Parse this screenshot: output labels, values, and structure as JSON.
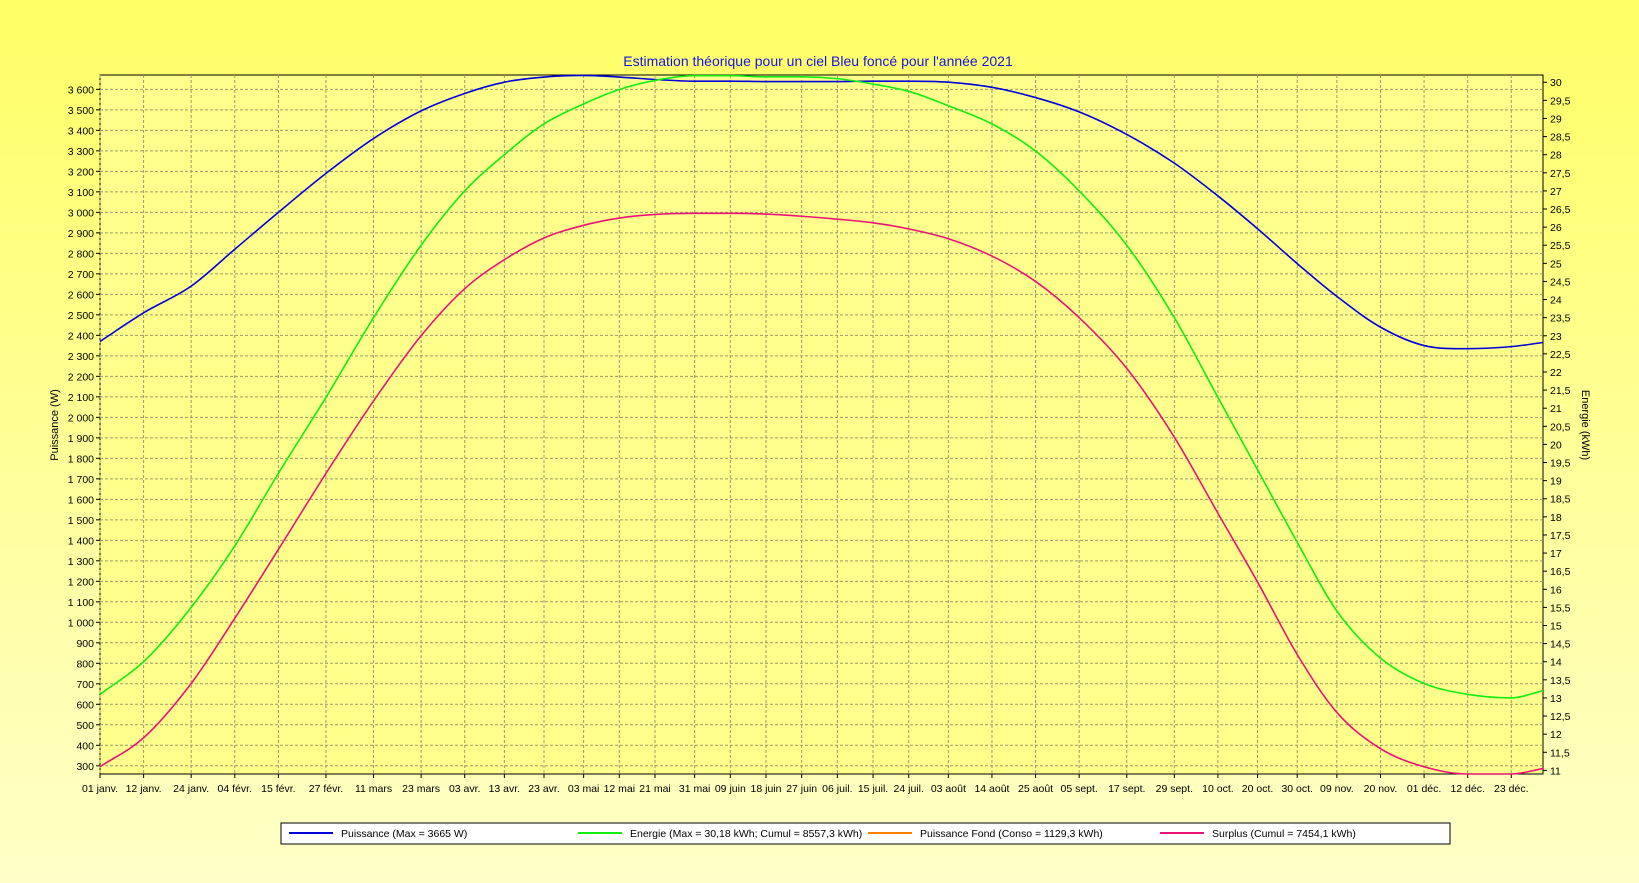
{
  "chart_data": {
    "type": "line",
    "title": "Estimation théorique pour un ciel Bleu foncé pour l'année 2021",
    "ylabel_left": "Puissance (W)",
    "ylabel_right": "Energie (kWh)",
    "xlim": [
      1,
      365
    ],
    "ylim_left": [
      260,
      3670
    ],
    "ylim_right": [
      10.9,
      30.2
    ],
    "grid": true,
    "legend_position": "bottom",
    "x_ticks": [
      {
        "day": 1,
        "label": "01 janv."
      },
      {
        "day": 12,
        "label": "12 janv."
      },
      {
        "day": 24,
        "label": "24 janv."
      },
      {
        "day": 35,
        "label": "04 févr."
      },
      {
        "day": 46,
        "label": "15 févr."
      },
      {
        "day": 58,
        "label": "27 févr."
      },
      {
        "day": 70,
        "label": "11 mars"
      },
      {
        "day": 82,
        "label": "23 mars"
      },
      {
        "day": 93,
        "label": "03 avr."
      },
      {
        "day": 103,
        "label": "13 avr."
      },
      {
        "day": 113,
        "label": "23 avr."
      },
      {
        "day": 123,
        "label": "03 mai"
      },
      {
        "day": 132,
        "label": "12 mai"
      },
      {
        "day": 141,
        "label": "21 mai"
      },
      {
        "day": 151,
        "label": "31 mai"
      },
      {
        "day": 160,
        "label": "09 juin"
      },
      {
        "day": 169,
        "label": "18 juin"
      },
      {
        "day": 178,
        "label": "27 juin"
      },
      {
        "day": 187,
        "label": "06 juil."
      },
      {
        "day": 196,
        "label": "15 juil."
      },
      {
        "day": 205,
        "label": "24 juil."
      },
      {
        "day": 215,
        "label": "03 août"
      },
      {
        "day": 226,
        "label": "14 août"
      },
      {
        "day": 237,
        "label": "25 août"
      },
      {
        "day": 248,
        "label": "05 sept."
      },
      {
        "day": 260,
        "label": "17 sept."
      },
      {
        "day": 272,
        "label": "29 sept."
      },
      {
        "day": 283,
        "label": "10 oct."
      },
      {
        "day": 293,
        "label": "20 oct."
      },
      {
        "day": 303,
        "label": "30 oct."
      },
      {
        "day": 313,
        "label": "09 nov."
      },
      {
        "day": 324,
        "label": "20 nov."
      },
      {
        "day": 335,
        "label": "01 déc."
      },
      {
        "day": 346,
        "label": "12 déc."
      },
      {
        "day": 357,
        "label": "23 déc."
      }
    ],
    "y_left_ticks": [
      {
        "v": 300,
        "label": "300"
      },
      {
        "v": 400,
        "label": "400"
      },
      {
        "v": 500,
        "label": "500"
      },
      {
        "v": 600,
        "label": "600"
      },
      {
        "v": 700,
        "label": "700"
      },
      {
        "v": 800,
        "label": "800"
      },
      {
        "v": 900,
        "label": "900"
      },
      {
        "v": 1000,
        "label": "1 000"
      },
      {
        "v": 1100,
        "label": "1 100"
      },
      {
        "v": 1200,
        "label": "1 200"
      },
      {
        "v": 1300,
        "label": "1 300"
      },
      {
        "v": 1400,
        "label": "1 400"
      },
      {
        "v": 1500,
        "label": "1 500"
      },
      {
        "v": 1600,
        "label": "1 600"
      },
      {
        "v": 1700,
        "label": "1 700"
      },
      {
        "v": 1800,
        "label": "1 800"
      },
      {
        "v": 1900,
        "label": "1 900"
      },
      {
        "v": 2000,
        "label": "2 000"
      },
      {
        "v": 2100,
        "label": "2 100"
      },
      {
        "v": 2200,
        "label": "2 200"
      },
      {
        "v": 2300,
        "label": "2 300"
      },
      {
        "v": 2400,
        "label": "2 400"
      },
      {
        "v": 2500,
        "label": "2 500"
      },
      {
        "v": 2600,
        "label": "2 600"
      },
      {
        "v": 2700,
        "label": "2 700"
      },
      {
        "v": 2800,
        "label": "2 800"
      },
      {
        "v": 2900,
        "label": "2 900"
      },
      {
        "v": 3000,
        "label": "3 000"
      },
      {
        "v": 3100,
        "label": "3 100"
      },
      {
        "v": 3200,
        "label": "3 200"
      },
      {
        "v": 3300,
        "label": "3 300"
      },
      {
        "v": 3400,
        "label": "3 400"
      },
      {
        "v": 3500,
        "label": "3 500"
      },
      {
        "v": 3600,
        "label": "3 600"
      }
    ],
    "y_right_ticks": [
      {
        "v": 11,
        "label": "11"
      },
      {
        "v": 11.5,
        "label": "11,5"
      },
      {
        "v": 12,
        "label": "12"
      },
      {
        "v": 12.5,
        "label": "12,5"
      },
      {
        "v": 13,
        "label": "13"
      },
      {
        "v": 13.5,
        "label": "13,5"
      },
      {
        "v": 14,
        "label": "14"
      },
      {
        "v": 14.5,
        "label": "14,5"
      },
      {
        "v": 15,
        "label": "15"
      },
      {
        "v": 15.5,
        "label": "15,5"
      },
      {
        "v": 16,
        "label": "16"
      },
      {
        "v": 16.5,
        "label": "16,5"
      },
      {
        "v": 17,
        "label": "17"
      },
      {
        "v": 17.5,
        "label": "17,5"
      },
      {
        "v": 18,
        "label": "18"
      },
      {
        "v": 18.5,
        "label": "18,5"
      },
      {
        "v": 19,
        "label": "19"
      },
      {
        "v": 19.5,
        "label": "19,5"
      },
      {
        "v": 20,
        "label": "20"
      },
      {
        "v": 20.5,
        "label": "20,5"
      },
      {
        "v": 21,
        "label": "21"
      },
      {
        "v": 21.5,
        "label": "21,5"
      },
      {
        "v": 22,
        "label": "22"
      },
      {
        "v": 22.5,
        "label": "22,5"
      },
      {
        "v": 23,
        "label": "23"
      },
      {
        "v": 23.5,
        "label": "23,5"
      },
      {
        "v": 24,
        "label": "24"
      },
      {
        "v": 24.5,
        "label": "24,5"
      },
      {
        "v": 25,
        "label": "25"
      },
      {
        "v": 25.5,
        "label": "25,5"
      },
      {
        "v": 26,
        "label": "26"
      },
      {
        "v": 26.5,
        "label": "26,5"
      },
      {
        "v": 27,
        "label": "27"
      },
      {
        "v": 27.5,
        "label": "27,5"
      },
      {
        "v": 28,
        "label": "28"
      },
      {
        "v": 28.5,
        "label": "28,5"
      },
      {
        "v": 29,
        "label": "29"
      },
      {
        "v": 29.5,
        "label": "29,5"
      },
      {
        "v": 30,
        "label": "30"
      }
    ],
    "series": [
      {
        "name": "Puissance (Max = 3665 W)",
        "axis": "left",
        "color": "#0000dd",
        "x": [
          1,
          12,
          24,
          35,
          46,
          58,
          70,
          82,
          93,
          103,
          113,
          123,
          132,
          141,
          151,
          160,
          169,
          178,
          187,
          196,
          205,
          215,
          226,
          237,
          248,
          260,
          272,
          283,
          293,
          303,
          313,
          324,
          335,
          346,
          357,
          365
        ],
        "y": [
          2370,
          2510,
          2640,
          2820,
          3000,
          3190,
          3360,
          3495,
          3580,
          3635,
          3660,
          3668,
          3660,
          3648,
          3640,
          3640,
          3638,
          3638,
          3638,
          3640,
          3640,
          3635,
          3610,
          3560,
          3490,
          3380,
          3240,
          3080,
          2920,
          2750,
          2590,
          2440,
          2350,
          2335,
          2345,
          2365
        ]
      },
      {
        "name": "Energie (Max = 30,18 kWh; Cumul = 8557,3 kWh)",
        "axis": "right",
        "color": "#11ee11",
        "x": [
          1,
          12,
          24,
          35,
          46,
          58,
          70,
          82,
          93,
          103,
          113,
          123,
          132,
          141,
          151,
          160,
          169,
          178,
          187,
          196,
          205,
          215,
          226,
          237,
          248,
          260,
          272,
          283,
          293,
          303,
          313,
          324,
          335,
          346,
          357,
          365
        ],
        "y": [
          13.1,
          14.0,
          15.5,
          17.2,
          19.2,
          21.3,
          23.5,
          25.5,
          27.0,
          28.0,
          28.85,
          29.4,
          29.8,
          30.05,
          30.18,
          30.18,
          30.15,
          30.15,
          30.1,
          29.95,
          29.75,
          29.35,
          28.85,
          28.1,
          27.0,
          25.5,
          23.5,
          21.3,
          19.3,
          17.3,
          15.4,
          14.1,
          13.4,
          13.1,
          13.0,
          13.2
        ]
      },
      {
        "name": "Puissance Fond (Conso = 1129,3 kWh)",
        "axis": "left",
        "color": "#ff8000",
        "x": [],
        "y": []
      },
      {
        "name": "Surplus (Cumul = 7454,1 kWh)",
        "axis": "right",
        "color": "#ee1177",
        "x": [
          1,
          12,
          24,
          35,
          46,
          58,
          70,
          82,
          93,
          103,
          113,
          123,
          132,
          141,
          151,
          160,
          169,
          178,
          187,
          196,
          205,
          215,
          226,
          237,
          248,
          260,
          272,
          283,
          293,
          303,
          313,
          324,
          335,
          346,
          357,
          365
        ],
        "y": [
          11.1,
          11.9,
          13.4,
          15.2,
          17.1,
          19.2,
          21.2,
          23.0,
          24.3,
          25.1,
          25.7,
          26.05,
          26.25,
          26.35,
          26.38,
          26.38,
          26.36,
          26.3,
          26.22,
          26.12,
          25.95,
          25.68,
          25.2,
          24.5,
          23.5,
          22.1,
          20.2,
          18.1,
          16.2,
          14.2,
          12.6,
          11.6,
          11.1,
          10.9,
          10.9,
          11.05
        ]
      }
    ]
  }
}
